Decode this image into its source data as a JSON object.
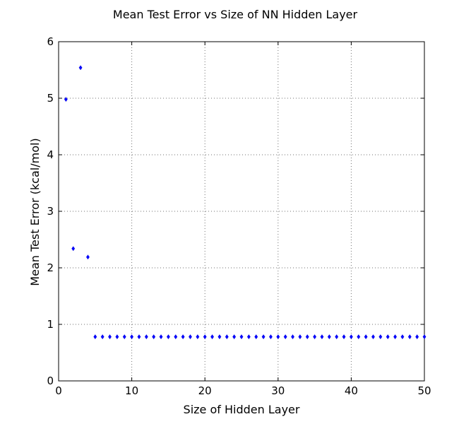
{
  "chart_data": {
    "type": "scatter",
    "title": "Mean Test Error vs Size of NN Hidden Layer",
    "xlabel": "Size of Hidden Layer",
    "ylabel": "Mean Test Error (kcal/mol)",
    "xlim": [
      0,
      50
    ],
    "ylim": [
      0,
      6
    ],
    "xticks": [
      0,
      10,
      20,
      30,
      40,
      50
    ],
    "yticks": [
      0,
      1,
      2,
      3,
      4,
      5,
      6
    ],
    "xtick_labels": [
      "0",
      "10",
      "20",
      "30",
      "40",
      "50"
    ],
    "ytick_labels": [
      "0",
      "1",
      "2",
      "3",
      "4",
      "5",
      "6"
    ],
    "grid": true,
    "marker": "diamond",
    "color": "#0000ff",
    "x": [
      1,
      2,
      3,
      4,
      5,
      6,
      7,
      8,
      9,
      10,
      11,
      12,
      13,
      14,
      15,
      16,
      17,
      18,
      19,
      20,
      21,
      22,
      23,
      24,
      25,
      26,
      27,
      28,
      29,
      30,
      31,
      32,
      33,
      34,
      35,
      36,
      37,
      38,
      39,
      40,
      41,
      42,
      43,
      44,
      45,
      46,
      47,
      48,
      49,
      50
    ],
    "y": [
      4.98,
      2.34,
      5.54,
      2.19,
      0.78,
      0.78,
      0.78,
      0.78,
      0.78,
      0.78,
      0.78,
      0.78,
      0.78,
      0.78,
      0.78,
      0.78,
      0.78,
      0.78,
      0.78,
      0.78,
      0.78,
      0.78,
      0.78,
      0.78,
      0.78,
      0.78,
      0.78,
      0.78,
      0.78,
      0.78,
      0.78,
      0.78,
      0.78,
      0.78,
      0.78,
      0.78,
      0.78,
      0.78,
      0.78,
      0.78,
      0.78,
      0.78,
      0.78,
      0.78,
      0.78,
      0.78,
      0.78,
      0.78,
      0.78,
      0.78
    ]
  }
}
